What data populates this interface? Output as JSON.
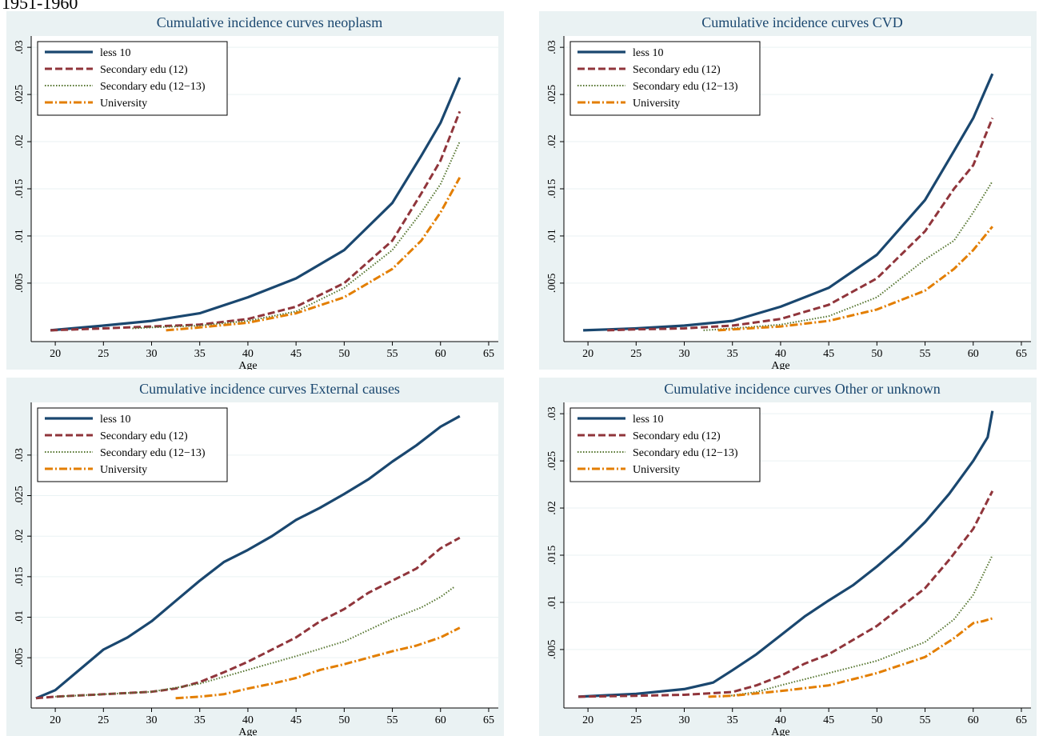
{
  "page": {
    "heading": "1951-1960"
  },
  "legend_labels": [
    "less 10",
    "Secondary edu (12)",
    "Secondary edu (12−13)",
    "University"
  ],
  "colors": {
    "panel_bg": "#eaf2f3",
    "plot_bg": "#ffffff",
    "grid": "#eaf2f3",
    "series": [
      "#1a476f",
      "#90353b",
      "#55752f",
      "#e37e00"
    ]
  },
  "chart_data": [
    {
      "type": "line",
      "title": "Cumulative incidence curves neoplasm",
      "xlabel": "Age",
      "ylabel": "",
      "xlim": [
        17.5,
        66
      ],
      "ylim": [
        -0.0012,
        0.0312
      ],
      "xticks": [
        "20",
        "25",
        "30",
        "35",
        "40",
        "45",
        "50",
        "55",
        "60",
        "65"
      ],
      "yticks": [
        ".005",
        ".01",
        ".015",
        ".02",
        ".025",
        ".03"
      ],
      "legend": "top-left",
      "series": [
        {
          "name": "less 10",
          "x": [
            19.5,
            25,
            30,
            35,
            40,
            45,
            50,
            55,
            58,
            60,
            62
          ],
          "y": [
            0,
            0.0005,
            0.001,
            0.0018,
            0.0035,
            0.0055,
            0.0085,
            0.0135,
            0.0185,
            0.022,
            0.0268
          ]
        },
        {
          "name": "Secondary edu (12)",
          "x": [
            19.5,
            25,
            30,
            35,
            40,
            45,
            50,
            55,
            58,
            60,
            62
          ],
          "y": [
            0,
            0.0002,
            0.0004,
            0.0006,
            0.0012,
            0.0025,
            0.005,
            0.0095,
            0.0145,
            0.018,
            0.0232
          ]
        },
        {
          "name": "Secondary edu (12−13)",
          "x": [
            28,
            30,
            35,
            40,
            45,
            50,
            55,
            58,
            60,
            62
          ],
          "y": [
            0.0002,
            0.0003,
            0.0005,
            0.001,
            0.002,
            0.0045,
            0.0085,
            0.0125,
            0.0155,
            0.02
          ]
        },
        {
          "name": "University",
          "x": [
            31.5,
            35,
            40,
            45,
            50,
            55,
            58,
            60,
            62
          ],
          "y": [
            0,
            0.0003,
            0.0008,
            0.0018,
            0.0035,
            0.0065,
            0.0095,
            0.0125,
            0.0162
          ]
        }
      ]
    },
    {
      "type": "line",
      "title": "Cumulative incidence curves CVD",
      "xlabel": "Age",
      "ylabel": "",
      "xlim": [
        17.5,
        66
      ],
      "ylim": [
        -0.0012,
        0.0312
      ],
      "xticks": [
        "20",
        "25",
        "30",
        "35",
        "40",
        "45",
        "50",
        "55",
        "60",
        "65"
      ],
      "yticks": [
        ".005",
        ".01",
        ".015",
        ".02",
        ".025",
        ".03"
      ],
      "legend": "top-left",
      "series": [
        {
          "name": "less 10",
          "x": [
            19.5,
            25,
            30,
            35,
            40,
            45,
            50,
            55,
            58,
            60,
            62
          ],
          "y": [
            0,
            0.0002,
            0.0005,
            0.001,
            0.0025,
            0.0045,
            0.008,
            0.0138,
            0.019,
            0.0225,
            0.0272
          ]
        },
        {
          "name": "Secondary edu (12)",
          "x": [
            22,
            25,
            30,
            35,
            40,
            45,
            50,
            55,
            58,
            60,
            62
          ],
          "y": [
            0,
            0.0001,
            0.0002,
            0.0005,
            0.0012,
            0.0027,
            0.0055,
            0.0105,
            0.015,
            0.0175,
            0.0225
          ]
        },
        {
          "name": "Secondary edu (12−13)",
          "x": [
            32,
            35,
            40,
            45,
            50,
            55,
            58,
            60,
            62
          ],
          "y": [
            0,
            0.0002,
            0.0006,
            0.0015,
            0.0035,
            0.0075,
            0.0095,
            0.0125,
            0.0158
          ]
        },
        {
          "name": "University",
          "x": [
            33.5,
            35,
            40,
            45,
            50,
            55,
            58,
            60,
            62
          ],
          "y": [
            0,
            0.0001,
            0.0004,
            0.001,
            0.0022,
            0.0042,
            0.0065,
            0.0085,
            0.011
          ]
        }
      ]
    },
    {
      "type": "line",
      "title": "Cumulative incidence curves External causes",
      "xlabel": "Age",
      "ylabel": "",
      "xlim": [
        17.5,
        66
      ],
      "ylim": [
        -0.0012,
        0.0365
      ],
      "xticks": [
        "20",
        "25",
        "30",
        "35",
        "40",
        "45",
        "50",
        "55",
        "60",
        "65"
      ],
      "yticks": [
        ".005",
        ".01",
        ".015",
        ".02",
        ".025",
        ".03"
      ],
      "legend": "top-left",
      "series": [
        {
          "name": "less 10",
          "x": [
            18,
            20,
            22.5,
            25,
            27.5,
            30,
            32.5,
            35,
            37.5,
            40,
            42.5,
            45,
            47.5,
            50,
            52.5,
            55,
            57.5,
            60,
            62
          ],
          "y": [
            0,
            0.001,
            0.0035,
            0.006,
            0.0075,
            0.0095,
            0.012,
            0.0145,
            0.0168,
            0.0183,
            0.02,
            0.022,
            0.0235,
            0.0252,
            0.027,
            0.0292,
            0.0312,
            0.0335,
            0.0348
          ]
        },
        {
          "name": "Secondary edu (12)",
          "x": [
            18,
            20,
            25,
            30,
            32.5,
            35,
            37.5,
            40,
            42.5,
            45,
            47.5,
            50,
            52.5,
            55,
            57.5,
            60,
            62
          ],
          "y": [
            0,
            0.0002,
            0.0005,
            0.0008,
            0.0012,
            0.002,
            0.0032,
            0.0045,
            0.006,
            0.0075,
            0.0095,
            0.011,
            0.013,
            0.0145,
            0.016,
            0.0185,
            0.0198
          ]
        },
        {
          "name": "Secondary edu (12−13)",
          "x": [
            20,
            25,
            30,
            35,
            40,
            45,
            50,
            55,
            58,
            60,
            61.5
          ],
          "y": [
            0.0002,
            0.0005,
            0.0008,
            0.0018,
            0.0035,
            0.0052,
            0.007,
            0.0098,
            0.0112,
            0.0125,
            0.0138
          ]
        },
        {
          "name": "University",
          "x": [
            32.5,
            35,
            37.5,
            40,
            42.5,
            45,
            47.5,
            50,
            52.5,
            55,
            57.5,
            60,
            62
          ],
          "y": [
            0,
            0.0002,
            0.0005,
            0.0012,
            0.0018,
            0.0025,
            0.0035,
            0.0042,
            0.005,
            0.0058,
            0.0065,
            0.0075,
            0.0087
          ]
        }
      ]
    },
    {
      "type": "line",
      "title": "Cumulative incidence curves Other or unknown",
      "xlabel": "Age",
      "ylabel": "",
      "xlim": [
        17.5,
        66
      ],
      "ylim": [
        -0.0012,
        0.0312
      ],
      "xticks": [
        "20",
        "25",
        "30",
        "35",
        "40",
        "45",
        "50",
        "55",
        "60",
        "65"
      ],
      "yticks": [
        ".005",
        ".01",
        ".015",
        ".02",
        ".025",
        ".03"
      ],
      "legend": "top-left",
      "series": [
        {
          "name": "less 10",
          "x": [
            19,
            25,
            30,
            33,
            35,
            37.5,
            40,
            42.5,
            45,
            47.5,
            50,
            52.5,
            55,
            57.5,
            60,
            61.5,
            62
          ],
          "y": [
            0,
            0.0003,
            0.0008,
            0.0015,
            0.0028,
            0.0045,
            0.0065,
            0.0085,
            0.0102,
            0.0118,
            0.0138,
            0.016,
            0.0185,
            0.0215,
            0.025,
            0.0275,
            0.0303
          ]
        },
        {
          "name": "Secondary edu (12)",
          "x": [
            19,
            25,
            30,
            35,
            37.5,
            40,
            42.5,
            45,
            47.5,
            50,
            52.5,
            55,
            57.5,
            60,
            62
          ],
          "y": [
            0,
            0.0001,
            0.0002,
            0.0005,
            0.0012,
            0.0022,
            0.0035,
            0.0045,
            0.006,
            0.0075,
            0.0095,
            0.0115,
            0.0145,
            0.0178,
            0.0218
          ]
        },
        {
          "name": "Secondary edu (12−13)",
          "x": [
            34,
            37.5,
            40,
            45,
            50,
            55,
            58,
            60,
            62
          ],
          "y": [
            0,
            0.0005,
            0.0012,
            0.0025,
            0.0038,
            0.0058,
            0.0082,
            0.0108,
            0.015
          ]
        },
        {
          "name": "University",
          "x": [
            32.5,
            35,
            40,
            45,
            50,
            55,
            58,
            60,
            61,
            62
          ],
          "y": [
            0,
            0.0001,
            0.0006,
            0.0012,
            0.0025,
            0.0042,
            0.0062,
            0.0078,
            0.008,
            0.0083
          ]
        }
      ]
    }
  ]
}
